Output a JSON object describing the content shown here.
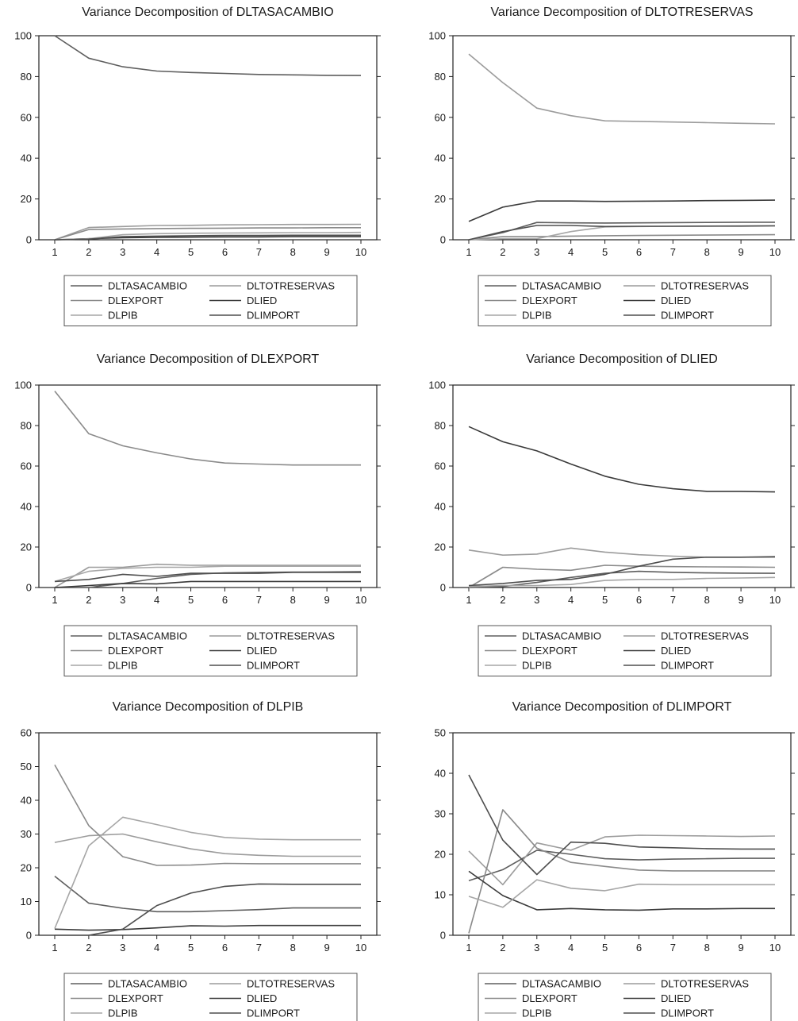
{
  "series_names": [
    "DLTASACAMBIO",
    "DLTOTRESERVAS",
    "DLEXPORT",
    "DLIED",
    "DLPIB",
    "DLIMPORT"
  ],
  "colors": {
    "DLTASACAMBIO": "#5e5e5e",
    "DLTOTRESERVAS": "#9c9c9c",
    "DLEXPORT": "#8a8a8a",
    "DLIED": "#3a3a3a",
    "DLPIB": "#a6a6a6",
    "DLIMPORT": "#4e4e4e",
    "axis": "#222222",
    "legend_border": "#555555"
  },
  "chart_data": [
    {
      "type": "line",
      "title": "Variance Decomposition of DLTASACAMBIO",
      "x": [
        1,
        2,
        3,
        4,
        5,
        6,
        7,
        8,
        9,
        10
      ],
      "ylim": [
        0,
        100
      ],
      "yticks": [
        0,
        20,
        40,
        60,
        80,
        100
      ],
      "grid": false,
      "legend": "bottom",
      "series": [
        {
          "name": "DLTASACAMBIO",
          "values": [
            100,
            89,
            84.8,
            82.7,
            82,
            81.5,
            81,
            80.8,
            80.6,
            80.5
          ]
        },
        {
          "name": "DLTOTRESERVAS",
          "values": [
            0,
            6,
            6.5,
            7,
            7.1,
            7.3,
            7.4,
            7.5,
            7.5,
            7.6
          ]
        },
        {
          "name": "DLEXPORT",
          "values": [
            0,
            5,
            5.3,
            5.5,
            5.6,
            5.7,
            5.8,
            5.8,
            5.9,
            5.9
          ]
        },
        {
          "name": "DLIED",
          "values": [
            0,
            0.5,
            1,
            1.2,
            1.3,
            1.4,
            1.4,
            1.5,
            1.5,
            1.5
          ]
        },
        {
          "name": "DLPIB",
          "values": [
            0,
            0.5,
            2.5,
            3,
            3.2,
            3.3,
            3.4,
            3.5,
            3.5,
            3.6
          ]
        },
        {
          "name": "DLIMPORT",
          "values": [
            0,
            0.3,
            1.5,
            1.8,
            2,
            2.1,
            2.1,
            2.2,
            2.2,
            2.2
          ]
        }
      ]
    },
    {
      "type": "line",
      "title": "Variance Decomposition of DLTOTRESERVAS",
      "x": [
        1,
        2,
        3,
        4,
        5,
        6,
        7,
        8,
        9,
        10
      ],
      "ylim": [
        0,
        100
      ],
      "yticks": [
        0,
        20,
        40,
        60,
        80,
        100
      ],
      "grid": false,
      "legend": "bottom",
      "series": [
        {
          "name": "DLTASACAMBIO",
          "values": [
            0,
            3.5,
            8.5,
            8.3,
            8.2,
            8.3,
            8.4,
            8.5,
            8.6,
            8.6
          ]
        },
        {
          "name": "DLTOTRESERVAS",
          "values": [
            91,
            77,
            64.5,
            60.8,
            58.3,
            58,
            57.7,
            57.4,
            57.1,
            56.8
          ]
        },
        {
          "name": "DLEXPORT",
          "values": [
            0,
            1.5,
            1.5,
            1.8,
            2,
            2.1,
            2.2,
            2.3,
            2.4,
            2.5
          ]
        },
        {
          "name": "DLIED",
          "values": [
            9,
            16,
            19,
            19,
            18.8,
            18.9,
            19,
            19.2,
            19.3,
            19.4
          ]
        },
        {
          "name": "DLPIB",
          "values": [
            0,
            0.5,
            0.5,
            4,
            6.3,
            6.5,
            6.6,
            6.7,
            6.8,
            6.9
          ]
        },
        {
          "name": "DLIMPORT",
          "values": [
            0,
            4,
            7,
            7,
            6.5,
            6.6,
            6.6,
            6.7,
            6.7,
            6.8
          ]
        }
      ]
    },
    {
      "type": "line",
      "title": "Variance Decomposition of DLEXPORT",
      "x": [
        1,
        2,
        3,
        4,
        5,
        6,
        7,
        8,
        9,
        10
      ],
      "ylim": [
        0,
        100
      ],
      "yticks": [
        0,
        20,
        40,
        60,
        80,
        100
      ],
      "grid": false,
      "legend": "bottom",
      "series": [
        {
          "name": "DLTASACAMBIO",
          "values": [
            0,
            0,
            2,
            4.5,
            6.5,
            7.2,
            7.5,
            7.6,
            7.7,
            7.8
          ]
        },
        {
          "name": "DLTOTRESERVAS",
          "values": [
            0,
            10,
            10,
            11.5,
            11,
            11,
            11,
            11,
            11,
            11
          ]
        },
        {
          "name": "DLEXPORT",
          "values": [
            97,
            76,
            70,
            66.5,
            63.5,
            61.5,
            61,
            60.5,
            60.5,
            60.5
          ]
        },
        {
          "name": "DLIED",
          "values": [
            0,
            1,
            2,
            1.8,
            3,
            3,
            3,
            3,
            3,
            3
          ]
        },
        {
          "name": "DLPIB",
          "values": [
            3,
            8,
            9.5,
            10,
            10,
            10.5,
            10.5,
            10.5,
            10.5,
            10.5
          ]
        },
        {
          "name": "DLIMPORT",
          "values": [
            3,
            4,
            6.5,
            5.5,
            7,
            7,
            7,
            7.5,
            7.5,
            7.5
          ]
        }
      ]
    },
    {
      "type": "line",
      "title": "Variance Decomposition of DLIED",
      "x": [
        1,
        2,
        3,
        4,
        5,
        6,
        7,
        8,
        9,
        10
      ],
      "ylim": [
        0,
        100
      ],
      "yticks": [
        0,
        20,
        40,
        60,
        80,
        100
      ],
      "grid": false,
      "legend": "bottom",
      "series": [
        {
          "name": "DLTASACAMBIO",
          "values": [
            0,
            0.5,
            2.5,
            5,
            7,
            8,
            7.5,
            7.2,
            7.1,
            7
          ]
        },
        {
          "name": "DLTOTRESERVAS",
          "values": [
            18.5,
            16,
            16.5,
            19.5,
            17.5,
            16.2,
            15.5,
            15,
            15,
            15
          ]
        },
        {
          "name": "DLEXPORT",
          "values": [
            0,
            10,
            9,
            8.5,
            11,
            10.5,
            10.3,
            10.2,
            10.1,
            10
          ]
        },
        {
          "name": "DLIED",
          "values": [
            79.5,
            72,
            67.5,
            61,
            55,
            51,
            48.8,
            47.5,
            47.5,
            47.2
          ]
        },
        {
          "name": "DLPIB",
          "values": [
            0.5,
            1,
            1,
            1.5,
            3.5,
            4,
            4,
            4.5,
            4.7,
            5
          ]
        },
        {
          "name": "DLIMPORT",
          "values": [
            1,
            2,
            3.5,
            4,
            6.5,
            10.5,
            14,
            15,
            15,
            15.2
          ]
        }
      ]
    },
    {
      "type": "line",
      "title": "Variance Decomposition of DLPIB",
      "x": [
        1,
        2,
        3,
        4,
        5,
        6,
        7,
        8,
        9,
        10
      ],
      "ylim": [
        0,
        60
      ],
      "yticks": [
        0,
        10,
        20,
        30,
        40,
        50,
        60
      ],
      "grid": false,
      "legend": "bottom",
      "series": [
        {
          "name": "DLTASACAMBIO",
          "values": [
            17.5,
            9.5,
            8,
            7,
            7,
            7.3,
            7.6,
            8.1,
            8.1,
            8.1
          ]
        },
        {
          "name": "DLTOTRESERVAS",
          "values": [
            27.5,
            29.5,
            30,
            27.7,
            25.6,
            24.2,
            23.7,
            23.4,
            23.4,
            23.4
          ]
        },
        {
          "name": "DLEXPORT",
          "values": [
            50.5,
            32.5,
            23.3,
            20.7,
            20.8,
            21.3,
            21.2,
            21.2,
            21.2,
            21.2
          ]
        },
        {
          "name": "DLIED",
          "values": [
            1.8,
            1.5,
            1.7,
            2.2,
            2.8,
            2.7,
            2.9,
            2.9,
            2.9,
            2.9
          ]
        },
        {
          "name": "DLPIB",
          "values": [
            2,
            26.5,
            35,
            32.8,
            30.5,
            29,
            28.5,
            28.3,
            28.3,
            28.3
          ]
        },
        {
          "name": "DLIMPORT",
          "values": [
            0,
            0,
            1.8,
            8.8,
            12.5,
            14.5,
            15.2,
            15.1,
            15.1,
            15.1
          ]
        }
      ]
    },
    {
      "type": "line",
      "title": "Variance Decomposition of DLIMPORT",
      "x": [
        1,
        2,
        3,
        4,
        5,
        6,
        7,
        8,
        9,
        10
      ],
      "ylim": [
        0,
        50
      ],
      "yticks": [
        0,
        10,
        20,
        30,
        40,
        50
      ],
      "grid": false,
      "legend": "bottom",
      "series": [
        {
          "name": "DLTASACAMBIO",
          "values": [
            13.5,
            16.2,
            21,
            20,
            18.9,
            18.6,
            18.8,
            18.9,
            19,
            19
          ]
        },
        {
          "name": "DLTOTRESERVAS",
          "values": [
            20.8,
            12.5,
            22.8,
            21,
            24.3,
            24.7,
            24.6,
            24.5,
            24.4,
            24.5
          ]
        },
        {
          "name": "DLEXPORT",
          "values": [
            0.5,
            31,
            21.5,
            18,
            17,
            16.1,
            15.9,
            15.9,
            15.9,
            15.9
          ]
        },
        {
          "name": "DLIED",
          "values": [
            15.8,
            9.8,
            6.3,
            6.6,
            6.3,
            6.2,
            6.5,
            6.5,
            6.6,
            6.6
          ]
        },
        {
          "name": "DLPIB",
          "values": [
            9.6,
            6.9,
            13.7,
            11.6,
            11,
            12.6,
            12.5,
            12.5,
            12.5,
            12.5
          ]
        },
        {
          "name": "DLIMPORT",
          "values": [
            39.6,
            23.5,
            15,
            23,
            22.7,
            21.8,
            21.6,
            21.4,
            21.3,
            21.3
          ]
        }
      ]
    }
  ]
}
